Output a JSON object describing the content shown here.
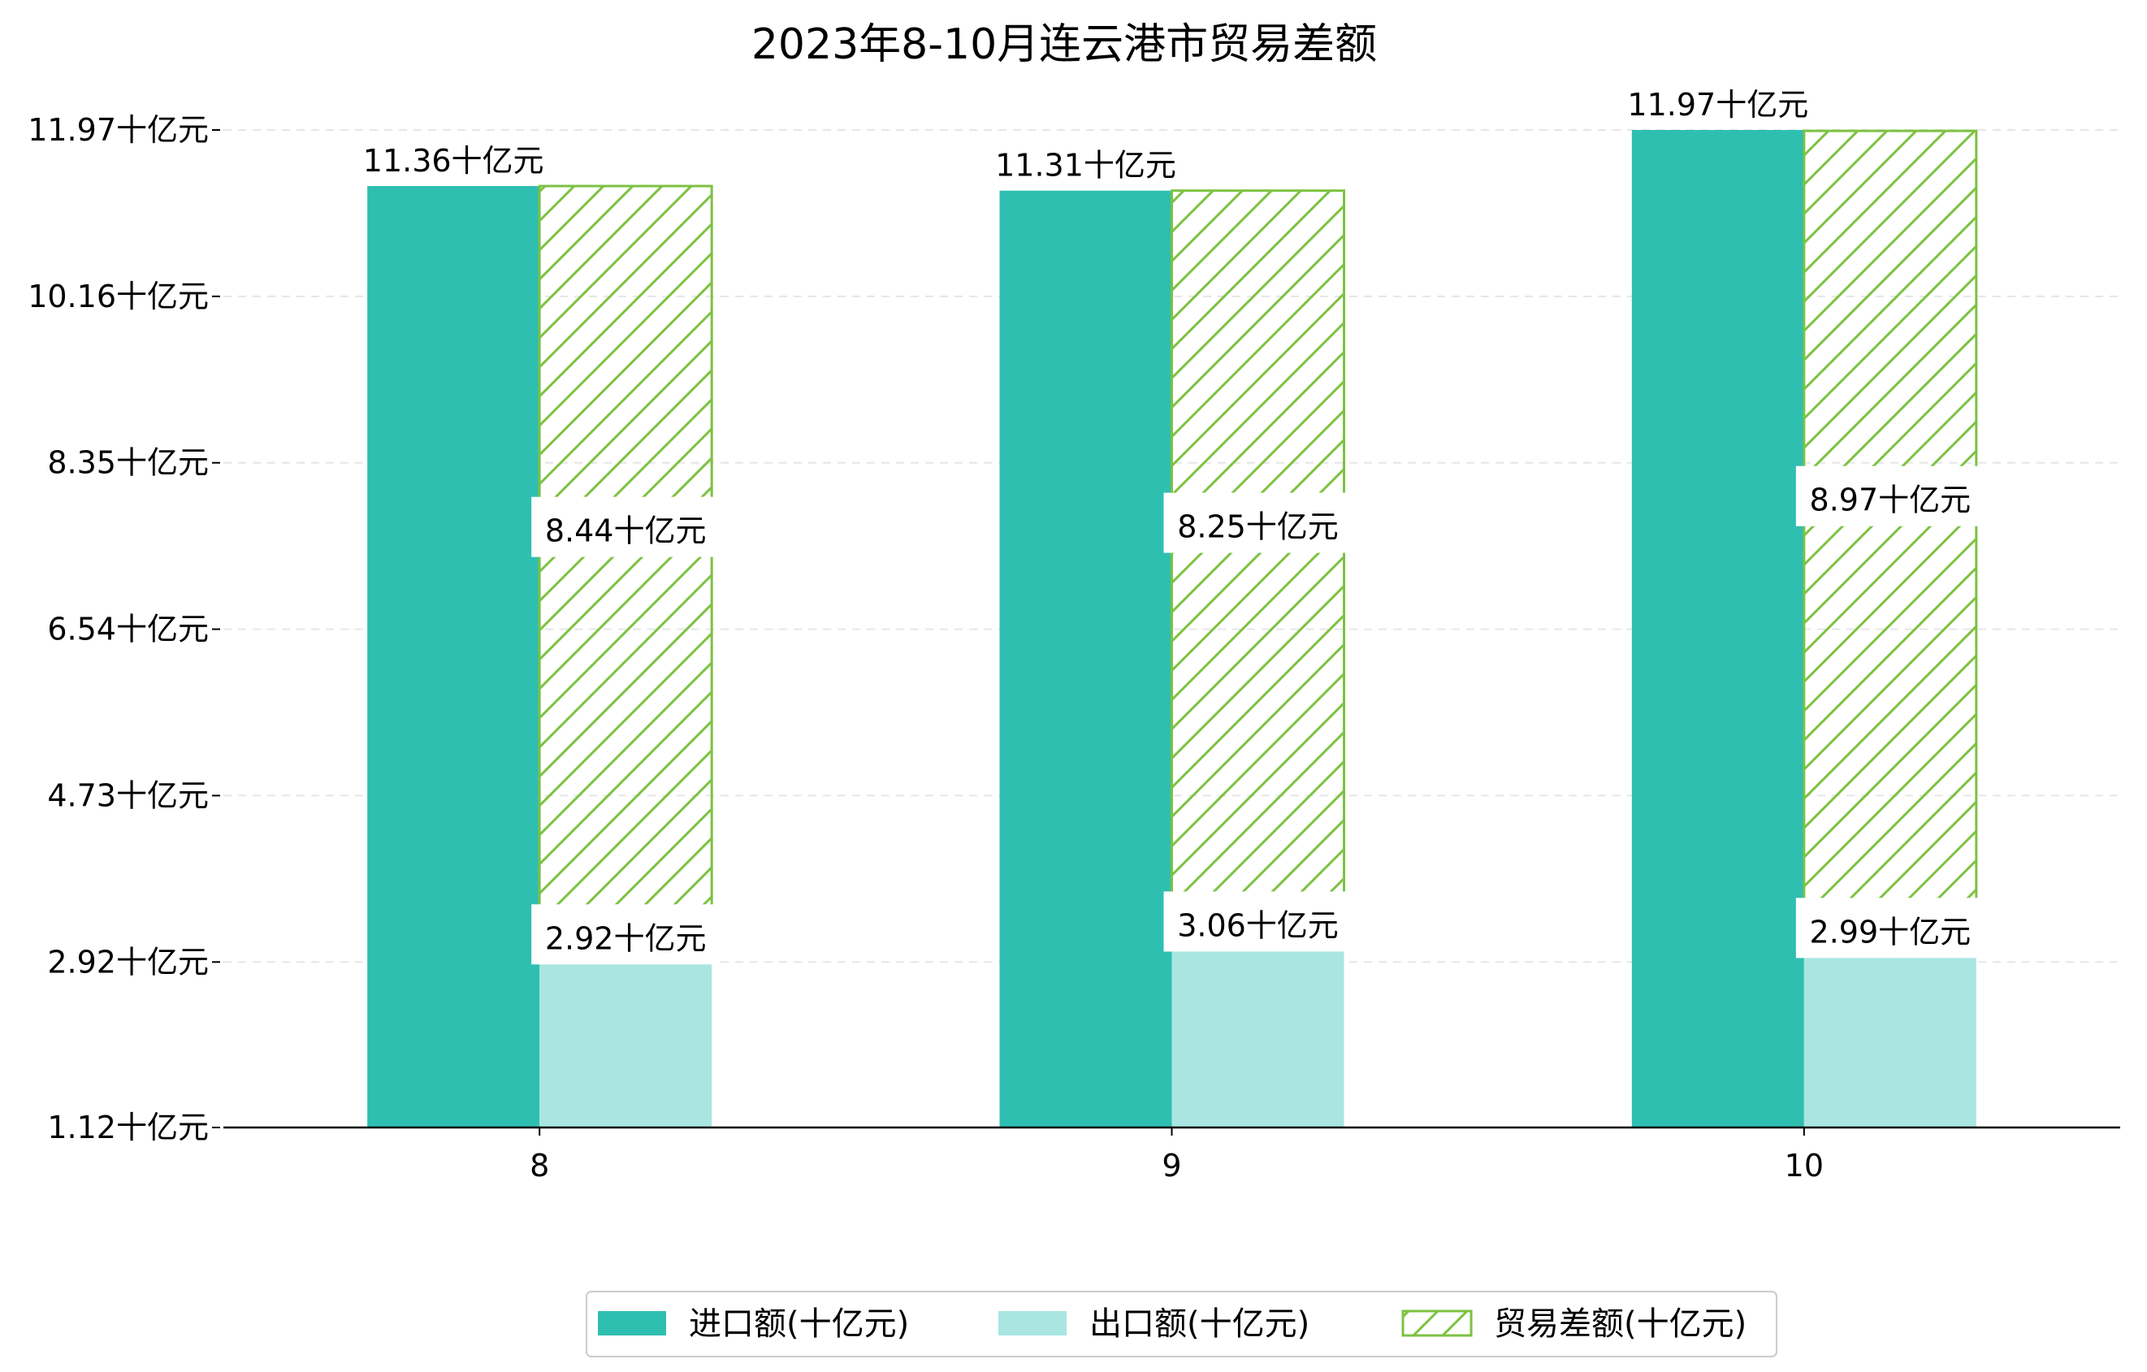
{
  "chart_data": {
    "type": "bar",
    "title": "2023年8-10月连云港市贸易差额",
    "xlabel": "",
    "ylabel": "",
    "categories": [
      "8",
      "9",
      "10"
    ],
    "ylim": [
      1.12,
      11.97
    ],
    "yticks": [
      1.12,
      2.92,
      4.73,
      6.54,
      8.35,
      10.16,
      11.97
    ],
    "ytick_labels": [
      "1.12十亿元",
      "2.92十亿元",
      "4.73十亿元",
      "6.54十亿元",
      "8.35十亿元",
      "10.16十亿元",
      "11.97十亿元"
    ],
    "grid": "y-dashed",
    "legend_position": "bottom-center",
    "series": [
      {
        "name": "进口额(十亿元)",
        "values": [
          11.36,
          11.31,
          11.97
        ],
        "labels": [
          "11.36十亿元",
          "11.31十亿元",
          "11.97十亿元"
        ],
        "color": "#2ebfb1",
        "style": "solid"
      },
      {
        "name": "出口额(十亿元)",
        "values": [
          2.92,
          3.06,
          2.99
        ],
        "labels": [
          "2.92十亿元",
          "3.06十亿元",
          "2.99十亿元"
        ],
        "color": "#a9e6e1",
        "style": "solid"
      },
      {
        "name": "贸易差额(十亿元)",
        "values": [
          8.44,
          8.25,
          8.97
        ],
        "labels": [
          "8.44十亿元",
          "8.25十亿元",
          "8.97十亿元"
        ],
        "color": "#7dc242",
        "style": "hatched-stacked-on-export"
      }
    ]
  }
}
